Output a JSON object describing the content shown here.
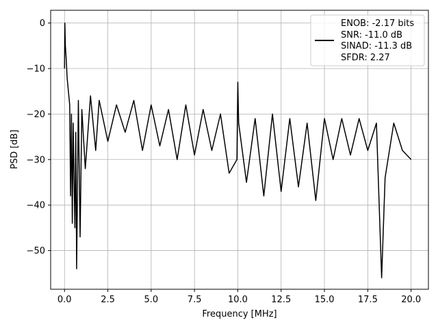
{
  "chart_data": {
    "type": "line",
    "title": "",
    "xlabel": "Frequency [MHz]",
    "ylabel": "PSD [dB]",
    "xlim": [
      -0.8,
      21.0
    ],
    "ylim": [
      -58.5,
      2.8
    ],
    "x_ticks": [
      0.0,
      2.5,
      5.0,
      7.5,
      10.0,
      12.5,
      15.0,
      17.5,
      20.0
    ],
    "x_tick_labels": [
      "0.0",
      "2.5",
      "5.0",
      "7.5",
      "10.0",
      "12.5",
      "15.0",
      "17.5",
      "20.0"
    ],
    "y_ticks": [
      0,
      -10,
      -20,
      -30,
      -40,
      -50
    ],
    "y_tick_labels": [
      "0",
      "−10",
      "−20",
      "−30",
      "−40",
      "−50"
    ],
    "grid": true,
    "legend_position": "top-right",
    "line_color": "#000000",
    "series": [
      {
        "legend_lines": [
          "ENOB: -2.17 bits",
          "SNR: -11.0 dB",
          "SINAD: -11.3 dB",
          "SFDR: 2.27"
        ],
        "x": [
          0.0,
          0.02,
          0.05,
          0.1,
          0.15,
          0.2,
          0.25,
          0.3,
          0.35,
          0.4,
          0.45,
          0.5,
          0.55,
          0.6,
          0.65,
          0.7,
          0.8,
          0.9,
          1.0,
          1.2,
          1.5,
          1.8,
          2.0,
          2.5,
          3.0,
          3.5,
          4.0,
          4.5,
          5.0,
          5.5,
          6.0,
          6.5,
          7.0,
          7.5,
          8.0,
          8.5,
          9.0,
          9.5,
          9.95,
          10.0,
          10.05,
          10.5,
          11.0,
          11.5,
          12.0,
          12.5,
          13.0,
          13.5,
          14.0,
          14.5,
          15.0,
          15.5,
          16.0,
          16.5,
          17.0,
          17.5,
          18.0,
          18.3,
          18.5,
          19.0,
          19.5,
          20.0
        ],
        "y": [
          -10,
          0,
          -5,
          -8,
          -12,
          -14,
          -16,
          -18,
          -38,
          -20,
          -44,
          -22,
          -34,
          -45,
          -24,
          -54,
          -17,
          -47,
          -19,
          -32,
          -16,
          -28,
          -17,
          -26,
          -18,
          -24,
          -17,
          -28,
          -18,
          -27,
          -19,
          -30,
          -18,
          -29,
          -19,
          -28,
          -20,
          -33,
          -30,
          -13,
          -22,
          -35,
          -21,
          -38,
          -20,
          -37,
          -21,
          -36,
          -22,
          -39,
          -21,
          -30,
          -21,
          -29,
          -21,
          -28,
          -22,
          -56,
          -34,
          -22,
          -28,
          -30
        ]
      }
    ]
  }
}
